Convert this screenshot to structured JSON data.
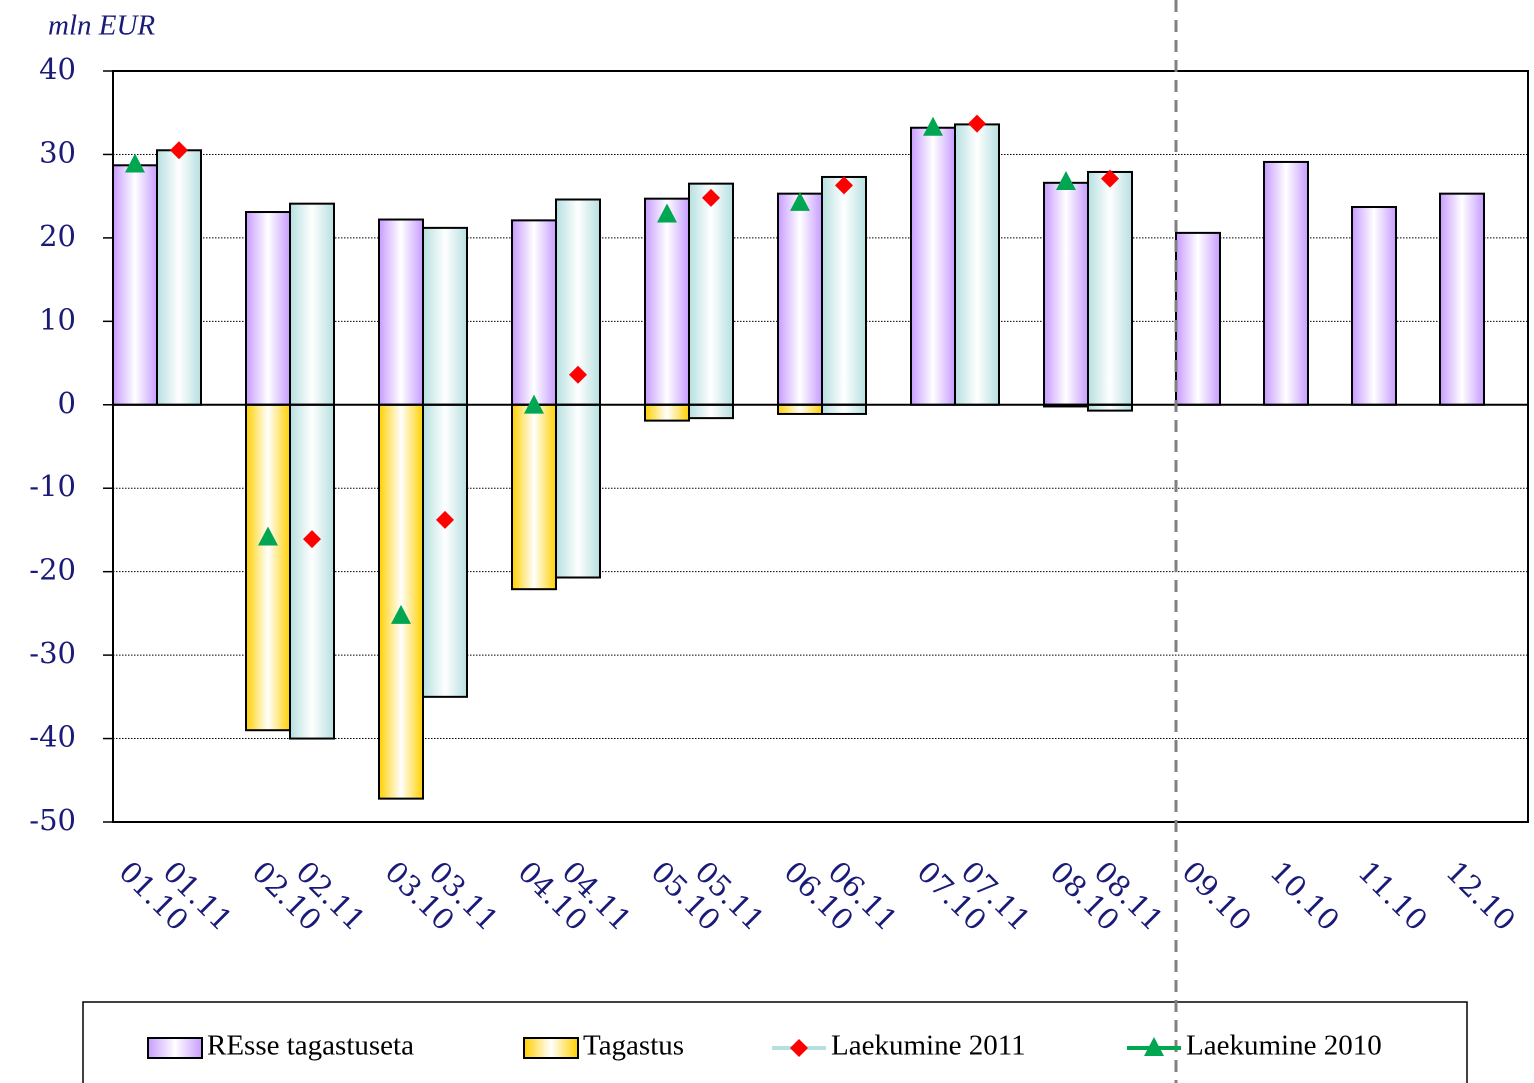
{
  "chart_data": {
    "type": "bar",
    "y_label": "mln EUR",
    "categories": [
      "01.10",
      "01.11",
      "02.10",
      "02.11",
      "03.10",
      "03.11",
      "04.10",
      "04.11",
      "05.10",
      "05.11",
      "06.10",
      "06.11",
      "07.10",
      "07.11",
      "08.10",
      "08.11",
      "09.10",
      "10.10",
      "11.10",
      "12.10"
    ],
    "series": [
      {
        "name": "REsse tagastuseta",
        "kind": "bar",
        "color": "#c79cff",
        "colors": [
          "#c79cff",
          "#b6dfe0",
          "#c79cff",
          "#b6dfe0",
          "#c79cff",
          "#b6dfe0",
          "#c79cff",
          "#b6dfe0",
          "#c79cff",
          "#b6dfe0",
          "#c79cff",
          "#b6dfe0",
          "#c79cff",
          "#b6dfe0",
          "#c79cff",
          "#b6dfe0",
          "#c79cff",
          "#c79cff",
          "#c79cff",
          "#c79cff"
        ],
        "values": [
          28.7,
          30.5,
          23.1,
          24.1,
          22.2,
          21.2,
          22.1,
          24.6,
          24.7,
          26.5,
          25.3,
          27.3,
          33.2,
          33.6,
          26.6,
          27.9,
          20.6,
          29.1,
          23.7,
          25.3
        ]
      },
      {
        "name": "Tagastus",
        "kind": "bar",
        "color": "#ffd000",
        "colors": [
          "#ffd000",
          "#b6dfe0",
          "#ffd000",
          "#b6dfe0",
          "#ffd000",
          "#b6dfe0",
          "#ffd000",
          "#b6dfe0",
          "#ffd000",
          "#b6dfe0",
          "#ffd000",
          "#b6dfe0",
          "#ffd000",
          "#b6dfe0",
          "#ffd000",
          "#b6dfe0",
          "#ffd000",
          "#ffd000",
          "#ffd000",
          "#ffd000"
        ],
        "values": [
          0,
          0,
          -39.0,
          -40.0,
          -47.2,
          -35.0,
          -22.1,
          -20.7,
          -1.9,
          -1.6,
          -1.1,
          -1.1,
          0,
          0,
          -0.2,
          -0.7,
          0,
          0,
          0,
          0
        ]
      },
      {
        "name": "Laekumine 2011",
        "kind": "marker",
        "color": "#b6dfe0",
        "marker": "diamond",
        "marker_color": "#ff0000",
        "values": [
          null,
          30.5,
          null,
          -16.1,
          null,
          -13.8,
          null,
          3.6,
          null,
          24.8,
          null,
          26.3,
          null,
          33.7,
          null,
          27.1,
          null,
          null,
          null,
          null
        ]
      },
      {
        "name": "Laekumine 2010",
        "kind": "marker",
        "color": "#00a651",
        "marker": "triangle",
        "marker_color": "#00a651",
        "values": [
          28.8,
          null,
          -15.9,
          null,
          -25.3,
          null,
          -0.1,
          null,
          22.8,
          null,
          24.2,
          null,
          33.2,
          null,
          26.7,
          null,
          null,
          null,
          null,
          null
        ]
      }
    ],
    "ylim": [
      -50,
      40
    ],
    "yticks": [
      -50,
      -40,
      -30,
      -20,
      -10,
      0,
      10,
      20,
      30,
      40
    ],
    "grid": true
  }
}
